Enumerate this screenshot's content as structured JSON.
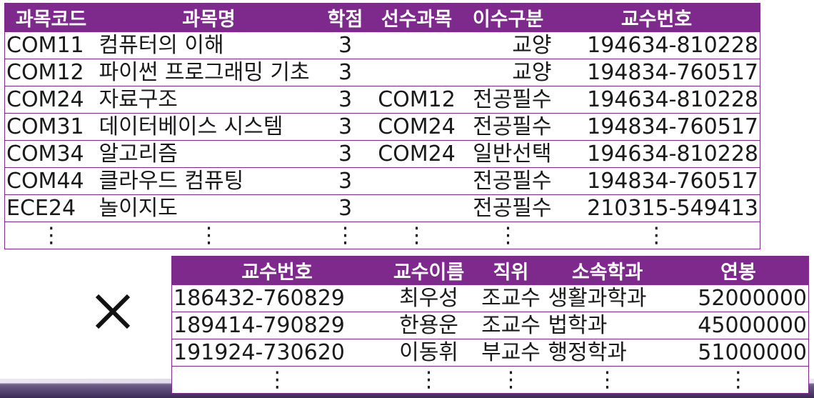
{
  "courses": {
    "headers": [
      "과목코드",
      "과목명",
      "학점",
      "선수과목",
      "이수구분",
      "교수번호"
    ],
    "rows": [
      [
        "COM11",
        "컴퓨터의 이해",
        "3",
        "",
        "교양",
        "194634-810228"
      ],
      [
        "COM12",
        "파이썬 프로그래밍 기초",
        "3",
        "",
        "교양",
        "194834-760517"
      ],
      [
        "COM24",
        "자료구조",
        "3",
        "COM12",
        "전공필수",
        "194634-810228"
      ],
      [
        "COM31",
        "데이터베이스 시스템",
        "3",
        "COM24",
        "전공필수",
        "194834-760517"
      ],
      [
        "COM34",
        "알고리즘",
        "3",
        "COM24",
        "일반선택",
        "194634-810228"
      ],
      [
        "COM44",
        "클라우드 컴퓨팅",
        "3",
        "",
        "전공필수",
        "194834-760517"
      ],
      [
        "ECE24",
        "놀이지도",
        "3",
        "",
        "전공필수",
        "210315-549413"
      ],
      [
        "⋮",
        "⋮",
        "⋮",
        "⋮",
        "⋮",
        "⋮"
      ]
    ]
  },
  "operator": "×",
  "professors": {
    "headers": [
      "교수번호",
      "교수이름",
      "직위",
      "소속학과",
      "연봉"
    ],
    "rows": [
      [
        "186432-760829",
        "최우성",
        "조교수",
        "생활과학과",
        "52000000"
      ],
      [
        "189414-790829",
        "한용운",
        "조교수",
        "법학과",
        "45000000"
      ],
      [
        "191924-730620",
        "이동휘",
        "부교수",
        "행정학과",
        "51000000"
      ],
      [
        "⋮",
        "⋮",
        "⋮",
        "⋮",
        "⋮"
      ]
    ]
  },
  "colors": {
    "header_bg": "#7d2a8c",
    "header_text": "#ffffff",
    "border": "#7d2a8c"
  }
}
